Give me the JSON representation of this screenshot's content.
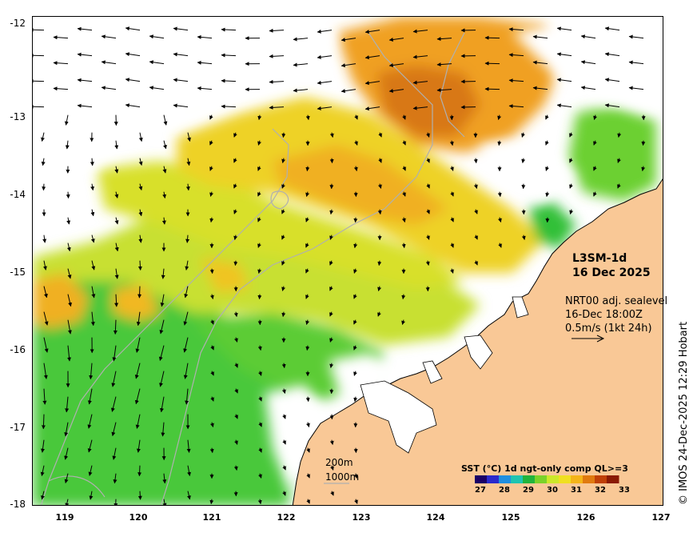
{
  "map": {
    "product": "L3SM-1d",
    "date": "16 Dec 2025",
    "current_info": [
      "NRT00 adj. sealevel",
      "16-Dec 18:00Z",
      "0.5m/s (1kt 24h)"
    ],
    "depth_contours": [
      "200m",
      "1000m"
    ],
    "credit": "© IMOS 24-Dec-2025 12:29 Hobart",
    "lat_labels": [
      "-12",
      "-13",
      "-14",
      "-15",
      "-16",
      "-17",
      "-18"
    ],
    "lon_labels": [
      "119",
      "120",
      "121",
      "122",
      "123",
      "124",
      "125",
      "126",
      "127"
    ],
    "colorbar": {
      "title": "SST (°C) 1d ngt-only comp QL>=3",
      "labels": [
        "27",
        "28",
        "29",
        "30",
        "31",
        "32",
        "33"
      ],
      "colors": [
        "#1a0066",
        "#2a2acc",
        "#1f8fe0",
        "#20c4b0",
        "#22b43c",
        "#7bd22a",
        "#cce82a",
        "#f0e020",
        "#f4b418",
        "#e07a10",
        "#c04008",
        "#8a1a04"
      ]
    },
    "colors": {
      "land": "#f9c896",
      "coast": "#000000",
      "isobath": "#b0b0b0",
      "sst_warm": "#f0a020",
      "sst_mid": "#e8e030",
      "sst_cool": "#3cc83c"
    }
  }
}
